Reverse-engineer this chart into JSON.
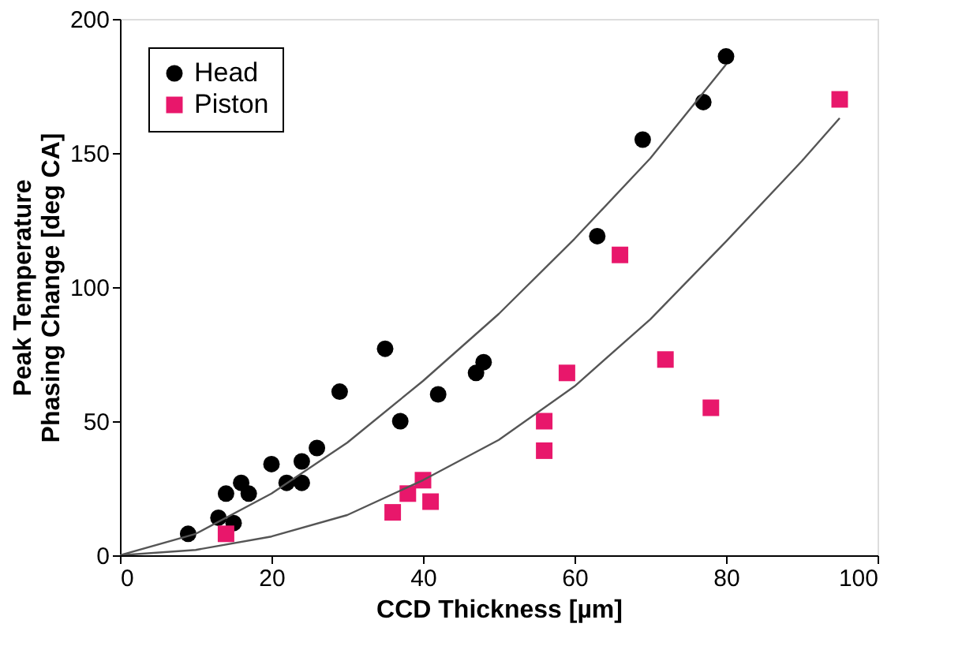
{
  "chart_data": {
    "type": "scatter",
    "xlabel": "CCD Thickness [µm]",
    "ylabel": "Peak Temperature\nPhasing Change [deg CA]",
    "xlim": [
      0,
      100
    ],
    "ylim": [
      0,
      200
    ],
    "xticks": [
      0,
      20,
      40,
      60,
      80,
      100
    ],
    "yticks": [
      0,
      50,
      100,
      150,
      200
    ],
    "grid": false,
    "legend": "top left",
    "series": [
      {
        "name": "Head",
        "color": "#000000",
        "marker": "circle",
        "x": [
          9,
          13,
          14,
          15,
          16,
          17,
          20,
          22,
          24,
          24,
          26,
          29,
          35,
          37,
          42,
          47,
          48,
          63,
          69,
          77,
          80
        ],
        "values": [
          8,
          14,
          23,
          12,
          27,
          23,
          34,
          27,
          35,
          27,
          40,
          61,
          77,
          50,
          60,
          68,
          72,
          119,
          155,
          169,
          186
        ]
      },
      {
        "name": "Piston",
        "color": "#e8176b",
        "marker": "square",
        "x": [
          14,
          36,
          38,
          40,
          41,
          56,
          56,
          59,
          66,
          72,
          78,
          95
        ],
        "values": [
          8,
          16,
          23,
          28,
          20,
          39,
          50,
          68,
          112,
          73,
          55,
          170
        ]
      },
      {
        "type": "line",
        "color": "#555555",
        "x": [
          0,
          10,
          20,
          30,
          40,
          50,
          60,
          70,
          80
        ],
        "values": [
          0,
          8,
          23,
          42,
          65,
          90,
          118,
          148,
          183
        ]
      },
      {
        "type": "line",
        "color": "#555555",
        "x": [
          0,
          10,
          20,
          30,
          40,
          50,
          60,
          70,
          80,
          90,
          95
        ],
        "values": [
          0,
          2,
          7,
          15,
          28,
          43,
          63,
          88,
          117,
          147,
          163
        ]
      }
    ]
  }
}
